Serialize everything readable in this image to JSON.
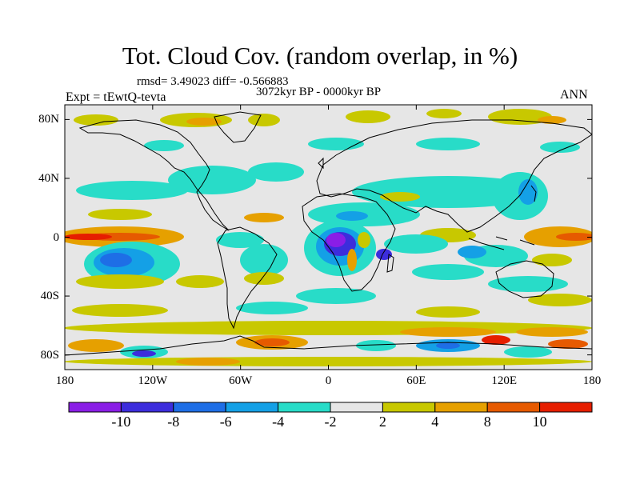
{
  "title": "Tot. Cloud Cov. (random overlap, in %)",
  "stats": "rmsd= 3.49023 diff= -0.566883",
  "period": "3072kyr BP - 0000kyr BP",
  "experiment": "Expt = tEwtQ-tevta",
  "season": "ANN",
  "map": {
    "projection": "cylindrical-equidistant",
    "lon_range": [
      -180,
      180
    ],
    "lat_range": [
      -90,
      90
    ],
    "lat_ticks": [
      {
        "label": "80N",
        "lat": 80
      },
      {
        "label": "40N",
        "lat": 40
      },
      {
        "label": "0",
        "lat": 0
      },
      {
        "label": "40S",
        "lat": -40
      },
      {
        "label": "80S",
        "lat": -80
      }
    ],
    "lon_ticks": [
      {
        "label": "180",
        "lon": -180
      },
      {
        "label": "120W",
        "lon": -120
      },
      {
        "label": "60W",
        "lon": -60
      },
      {
        "label": "0",
        "lon": 0
      },
      {
        "label": "60E",
        "lon": 60
      },
      {
        "label": "120E",
        "lon": 120
      },
      {
        "label": "180",
        "lon": 180
      }
    ],
    "background_color": "#e6e6e6",
    "coastline_color": "#000000"
  },
  "colorbar": {
    "labels": [
      "-10",
      "-8",
      "-6",
      "-4",
      "-2",
      "2",
      "4",
      "8",
      "10"
    ],
    "colors": [
      "#8a1ee6",
      "#3c2ddc",
      "#1e6ee6",
      "#14a0e6",
      "#28dcc8",
      "#e6e6e6",
      "#c8c800",
      "#e6a000",
      "#e65a00",
      "#e61e00"
    ]
  }
}
